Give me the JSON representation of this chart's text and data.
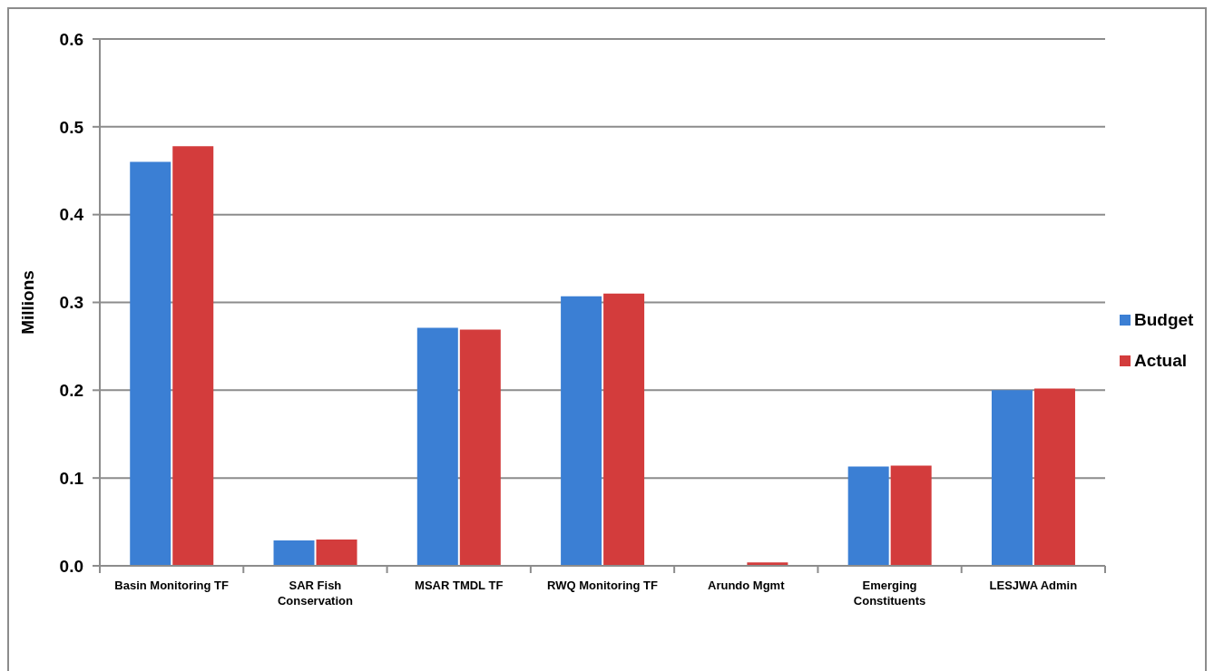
{
  "chart_data": {
    "type": "bar",
    "ylabel": "Millions",
    "categories": [
      "Basin Monitoring TF",
      "SAR Fish Conservation",
      "MSAR TMDL TF",
      "RWQ Monitoring TF",
      "Arundo Mgmt",
      "Emerging Constituents",
      "LESJWA Admin"
    ],
    "series": [
      {
        "name": "Budget",
        "color": "#3b7fd4",
        "values": [
          0.46,
          0.029,
          0.271,
          0.307,
          0,
          0.113,
          0.2
        ]
      },
      {
        "name": "Actual",
        "color": "#d33c3c",
        "values": [
          0.478,
          0.03,
          0.269,
          0.31,
          0.004,
          0.114,
          0.202
        ]
      }
    ],
    "ylim": [
      0,
      0.6
    ],
    "yticks": [
      {
        "value": 0,
        "label": "0.0"
      },
      0.1,
      0.2,
      0.3,
      0.4,
      0.5,
      0.6
    ],
    "grid": "y",
    "legend": "right"
  }
}
